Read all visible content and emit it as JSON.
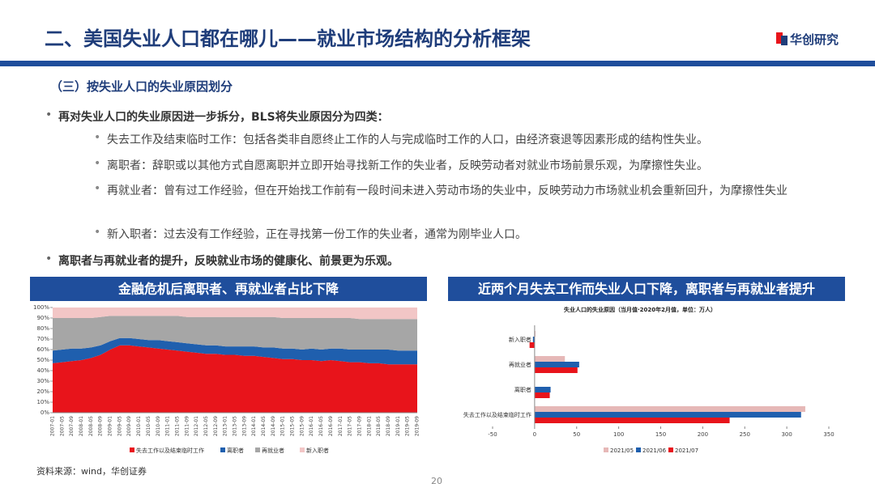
{
  "header": {
    "title": "二、美国失业人口都在哪儿——就业市场结构的分析框架",
    "logo": "华创研究"
  },
  "section": "（三）按失业人口的失业原因划分",
  "bullets": [
    {
      "text": "再对失业人口的失业原因进一步拆分，BLS将失业原因分为四类：",
      "sub": [
        "失去工作及结束临时工作：包括各类非自愿终止工作的人与完成临时工作的人口，由经济衰退等因素形成的结构性失业。",
        "离职者：辞职或以其他方式自愿离职并立即开始寻找新工作的失业者，反映劳动者对就业市场前景乐观，为摩擦性失业。",
        "再就业者：曾有过工作经验，但在开始找工作前有一段时间未进入劳动市场的失业中，反映劳动力市场就业机会重新回升，为摩擦性失业",
        "新入职者：过去没有工作经验，正在寻找第一份工作的失业者，通常为刚毕业人口。"
      ]
    },
    {
      "text": "离职者与再就业者的提升，反映就业市场的健康化、前景更为乐观。"
    }
  ],
  "chart_data": [
    {
      "type": "stacked-area",
      "title": "金融危机后离职者、再就业者占比下降",
      "x": [
        "2007-01",
        "2007-05",
        "2007-09",
        "2008-01",
        "2008-05",
        "2008-09",
        "2009-01",
        "2009-05",
        "2009-09",
        "2010-01",
        "2010-05",
        "2010-09",
        "2011-01",
        "2011-05",
        "2011-09",
        "2012-01",
        "2012-05",
        "2012-09",
        "2013-01",
        "2013-05",
        "2013-09",
        "2014-01",
        "2014-05",
        "2014-09",
        "2015-01",
        "2015-05",
        "2015-09",
        "2016-01",
        "2016-05",
        "2016-09",
        "2017-01",
        "2017-05",
        "2017-09",
        "2018-01",
        "2018-05",
        "2018-09",
        "2019-01",
        "2019-05",
        "2019-09"
      ],
      "series": [
        {
          "name": "失去工作以及结束临时工作",
          "color": "#e8141b",
          "values": [
            47,
            48,
            49,
            50,
            52,
            55,
            60,
            64,
            64,
            63,
            62,
            61,
            60,
            59,
            58,
            57,
            56,
            56,
            55,
            55,
            54,
            54,
            53,
            52,
            51,
            51,
            50,
            50,
            49,
            50,
            49,
            48,
            48,
            47,
            47,
            46,
            46,
            46,
            46
          ]
        },
        {
          "name": "离职者",
          "color": "#1f5fae",
          "values": [
            12,
            12,
            12,
            11,
            10,
            9,
            8,
            7,
            7,
            7,
            7,
            8,
            8,
            8,
            8,
            8,
            8,
            8,
            8,
            8,
            9,
            9,
            9,
            10,
            10,
            10,
            10,
            11,
            11,
            11,
            12,
            12,
            12,
            13,
            13,
            14,
            13,
            13,
            13
          ]
        },
        {
          "name": "再就业者",
          "color": "#a6a6a6",
          "values": [
            31,
            30,
            29,
            29,
            28,
            27,
            24,
            21,
            21,
            22,
            23,
            23,
            24,
            25,
            25,
            26,
            27,
            27,
            28,
            28,
            28,
            28,
            29,
            29,
            29,
            29,
            30,
            29,
            30,
            29,
            29,
            30,
            29,
            29,
            29,
            29,
            30,
            30,
            30
          ]
        },
        {
          "name": "新入职者",
          "color": "#f2c6c6",
          "values": [
            10,
            10,
            10,
            10,
            10,
            9,
            8,
            8,
            8,
            8,
            8,
            8,
            8,
            8,
            9,
            9,
            9,
            9,
            9,
            9,
            9,
            9,
            9,
            9,
            10,
            10,
            10,
            10,
            10,
            10,
            10,
            10,
            11,
            11,
            11,
            11,
            11,
            11,
            11
          ]
        }
      ],
      "ylim": [
        0,
        100
      ],
      "yticks": [
        {
          "value": 0,
          "label": "0%"
        },
        {
          "value": 10,
          "label": "10%"
        },
        {
          "value": 20,
          "label": "20%"
        },
        {
          "value": 30,
          "label": "30%"
        },
        {
          "value": 40,
          "label": "40%"
        },
        {
          "value": 50,
          "label": "50%"
        },
        {
          "value": 60,
          "label": "60%"
        },
        {
          "value": 70,
          "label": "70%"
        },
        {
          "value": 80,
          "label": "80%"
        },
        {
          "value": 90,
          "label": "90%"
        },
        {
          "value": 100,
          "label": "100%"
        }
      ]
    },
    {
      "type": "hbar",
      "title": "近两个月失去工作而失业人口下降，离职者与再就业者提升",
      "subtitle": "失业人口的失业原因（当月值·2020年2月值，单位：万人）",
      "categories": [
        "新入职者",
        "再就业者",
        "离职者",
        "失去工作以及结束临时工作"
      ],
      "series": [
        {
          "name": "2021/05",
          "color": "#e6b8b7",
          "values": [
            1,
            36,
            0,
            322
          ]
        },
        {
          "name": "2021/06",
          "color": "#1f5fae",
          "values": [
            -2,
            53,
            19,
            317
          ]
        },
        {
          "name": "2021/07",
          "color": "#e8141b",
          "values": [
            -6,
            51,
            18,
            232
          ]
        }
      ],
      "xlim": [
        -50,
        350
      ],
      "xticks": [
        -50,
        0,
        50,
        100,
        150,
        200,
        250,
        300,
        350
      ]
    }
  ],
  "source": "资料来源：wind，华创证券",
  "page": "20"
}
